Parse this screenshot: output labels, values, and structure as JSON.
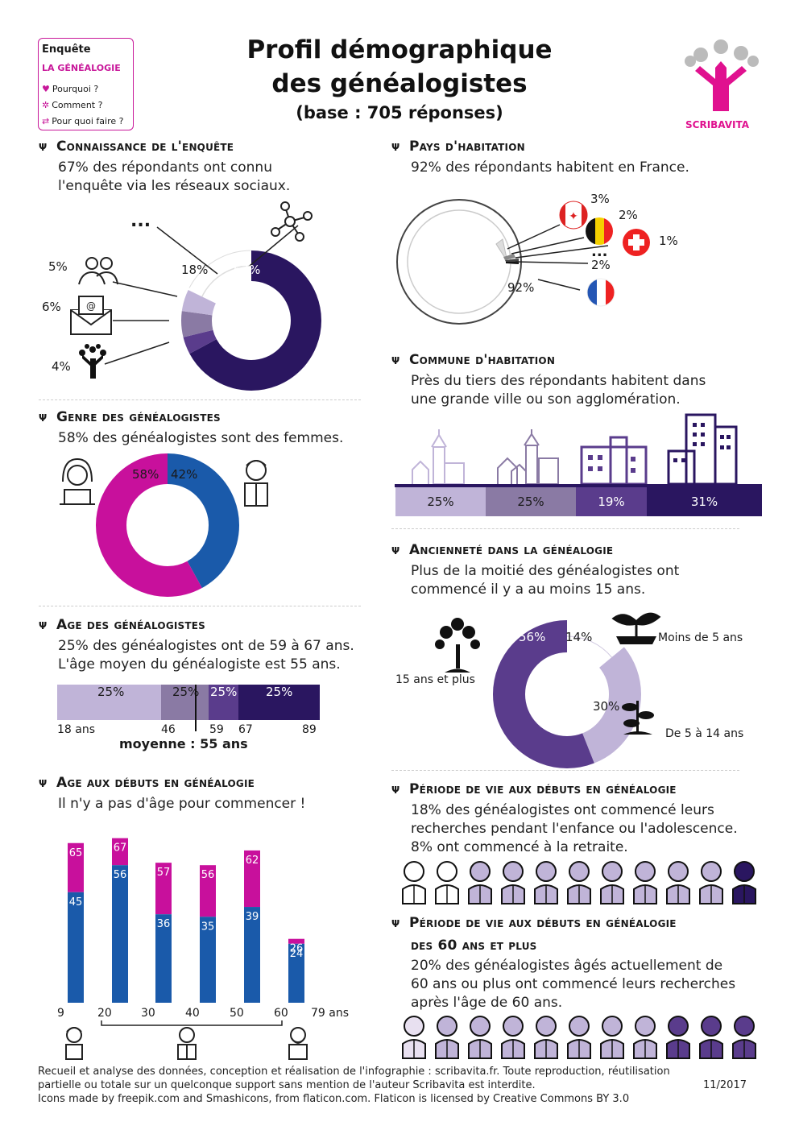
{
  "badge": {
    "title": "Enquête",
    "subtitle": "LA GÉNÉALOGIE",
    "items": [
      "Pourquoi ?",
      "Comment ?",
      "Pour quoi faire ?"
    ]
  },
  "title": {
    "line1": "Profil démographique",
    "line2": "des généalogistes",
    "line3": "(base : 705 réponses)"
  },
  "brand": "SCRIBAVITA",
  "connaissance": {
    "heading": "Connaissance de l'enquête",
    "text1": "67% des répondants ont connu",
    "text2": "l'enquête via les réseaux sociaux.",
    "labels": {
      "other": "18%",
      "social": "67%",
      "friends": "5%",
      "email": "6%",
      "site": "4%",
      "dots": "..."
    }
  },
  "pays": {
    "heading": "Pays d'habitation",
    "text": "92% des répondants habitent en France.",
    "labels": {
      "ca": "3%",
      "be": "2%",
      "ch": "1%",
      "other": "2%",
      "fr": "92%",
      "dots": "..."
    }
  },
  "commune": {
    "heading": "Commune d'habitation",
    "text1": "Près du tiers des répondants habitent dans",
    "text2": "une grande ville ou son agglomération.",
    "values": [
      "25%",
      "25%",
      "19%",
      "31%"
    ]
  },
  "genre": {
    "heading": "Genre des généalogistes",
    "text": "58% des généalogistes sont des femmes.",
    "female": "58%",
    "male": "42%"
  },
  "anciennete": {
    "heading": "Ancienneté dans la généalogie",
    "text1": "Plus de la moitié des généalogistes ont",
    "text2": "commencé il y a au moins 15 ans.",
    "labels": {
      "p56": "56%",
      "p14": "14%",
      "p30": "30%",
      "l1": "Moins de 5 ans",
      "l2": "15 ans et plus",
      "l3": "De 5 à 14 ans"
    }
  },
  "age": {
    "heading": "Age des généalogistes",
    "text1": "25% des généalogistes ont de 59 à 67 ans.",
    "text2": "L'âge moyen du généalogiste est 55 ans.",
    "segments": [
      "25%",
      "25%",
      "25%",
      "25%"
    ],
    "ticks": [
      "18 ans",
      "46",
      "59",
      "67",
      "89"
    ],
    "moyenne": "moyenne : 55 ans"
  },
  "debut": {
    "heading": "Age aux débuts en généalogie",
    "text": "Il n'y a pas d'âge pour commencer !",
    "xlabels": [
      "9",
      "20",
      "30",
      "40",
      "50",
      "60",
      "79 ans"
    ]
  },
  "chart_data": {
    "type": "bar",
    "series": [
      {
        "values": [
          45,
          56,
          36,
          35,
          39,
          24
        ]
      },
      {
        "values": [
          65,
          67,
          57,
          56,
          62,
          26
        ]
      }
    ],
    "xlabels": [
      "9",
      "20",
      "30",
      "40",
      "50",
      "60",
      "79 ans"
    ],
    "colors": {
      "top": "#c8109c",
      "bottom": "#1a5aaa"
    }
  },
  "periode": {
    "heading": "Période de vie aux débuts en généalogie",
    "text1": "18% des généalogistes ont commencé leurs",
    "text2": "recherches pendant l'enfance ou l'adolescence.",
    "text3": "8% ont commencé à la retraite."
  },
  "periode60": {
    "heading1": "Période de vie aux débuts en généalogie",
    "heading2": "des 60 ans et plus",
    "text1": "20% des généalogistes âgés actuellement de",
    "text2": "60 ans ou plus ont commencé leurs recherches",
    "text3": "après l'âge de 60 ans."
  },
  "footer": {
    "line1": "Recueil et analyse des données, conception et réalisation de l'infographie : scribavita.fr. Toute reproduction, réutilisation",
    "line2": "partielle ou totale sur un quelconque support sans mention de l'auteur Scribavita est interdite.",
    "date": "11/2017",
    "line3": "Icons made by freepik.com and Smashicons, from flaticon.com. Flaticon is licensed by Creative Commons BY 3.0"
  },
  "colors": {
    "magenta": "#c8109c",
    "blue": "#1a5aaa",
    "dark": "#2a1660",
    "mid": "#5a3c8c",
    "light": "#c0b4d8",
    "gray": "#8a7aa4"
  }
}
